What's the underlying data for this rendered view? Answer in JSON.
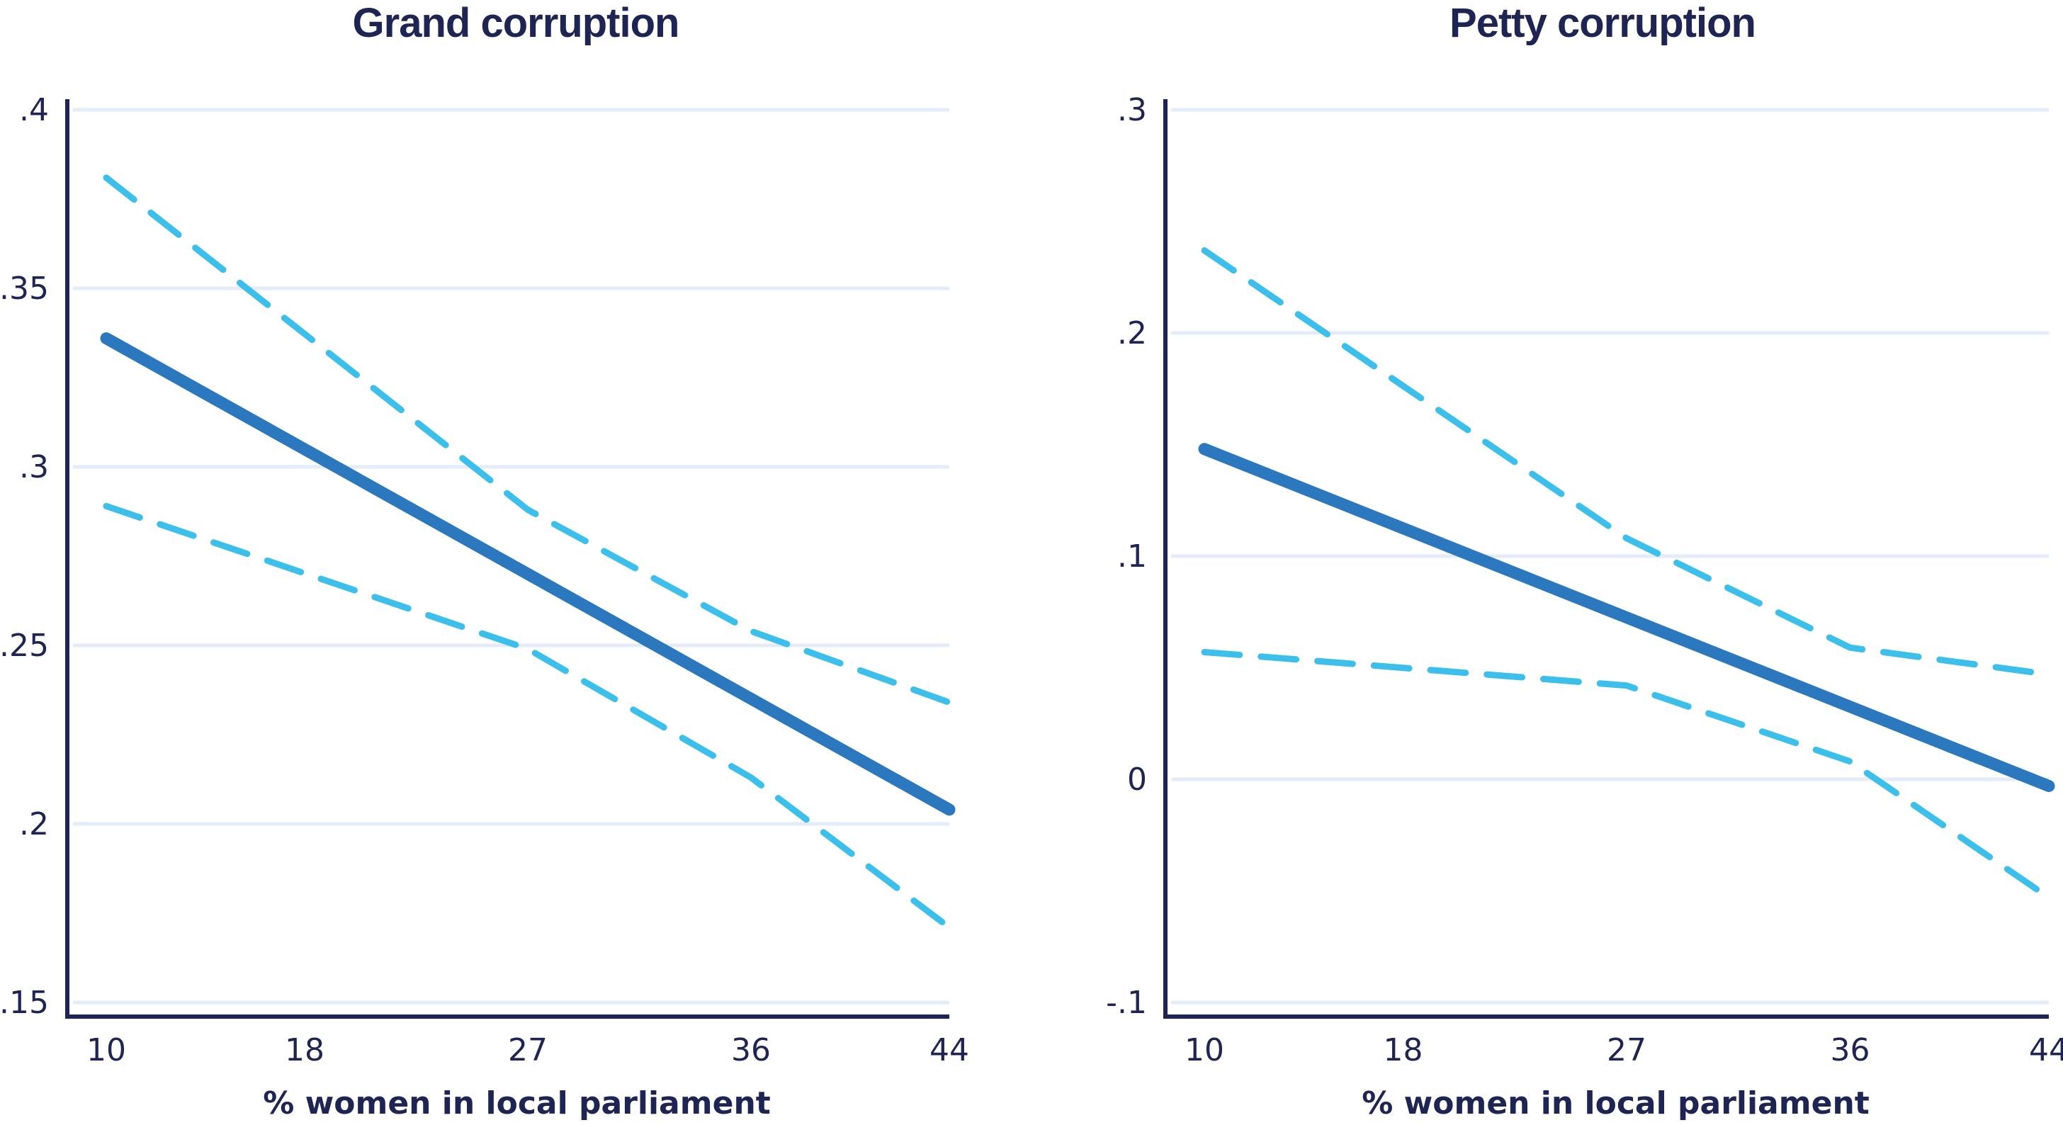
{
  "colors": {
    "title": "#1f2552",
    "axis": "#1f2552",
    "grid": "#e3ecf8",
    "estimate": "#2b78bf",
    "ci": "#3cbfea",
    "background": "#ffffff"
  },
  "chart_data": [
    {
      "type": "line",
      "title": "Grand corruption",
      "xlabel": "% women in local parliament",
      "ylabel": "",
      "x_ticks": [
        10,
        18,
        27,
        36,
        44
      ],
      "x_tick_labels": [
        "10",
        "18",
        "27",
        "36",
        "44"
      ],
      "xlim": [
        10,
        44
      ],
      "y_ticks": [
        0.15,
        0.2,
        0.25,
        0.3,
        0.35,
        0.4
      ],
      "y_tick_labels": [
        ".15",
        ".2",
        ".25",
        ".3",
        ".35",
        ".4"
      ],
      "ylim": [
        0.15,
        0.4
      ],
      "grid": true,
      "series": [
        {
          "name": "estimate",
          "style": "solid",
          "x": [
            10,
            44
          ],
          "values": [
            0.336,
            0.204
          ]
        },
        {
          "name": "upper ci",
          "style": "dashed",
          "x": [
            10,
            27,
            36,
            44
          ],
          "values": [
            0.381,
            0.288,
            0.254,
            0.234
          ]
        },
        {
          "name": "lower ci",
          "style": "dashed",
          "x": [
            10,
            27,
            36,
            44
          ],
          "values": [
            0.289,
            0.249,
            0.213,
            0.171
          ]
        }
      ]
    },
    {
      "type": "line",
      "title": "Petty corruption",
      "xlabel": "% women in local parliament",
      "ylabel": "",
      "x_ticks": [
        10,
        18,
        27,
        36,
        44
      ],
      "x_tick_labels": [
        "10",
        "18",
        "27",
        "36",
        "44"
      ],
      "xlim": [
        10,
        44
      ],
      "y_ticks": [
        -0.1,
        0,
        0.1,
        0.2,
        0.3
      ],
      "y_tick_labels": [
        "-.1",
        "0",
        ".1",
        ".2",
        ".3"
      ],
      "ylim": [
        -0.1,
        0.3
      ],
      "grid": true,
      "series": [
        {
          "name": "estimate",
          "style": "solid",
          "x": [
            10,
            44
          ],
          "values": [
            0.148,
            -0.003
          ]
        },
        {
          "name": "upper ci",
          "style": "dashed",
          "x": [
            10,
            27,
            36,
            44
          ],
          "values": [
            0.237,
            0.108,
            0.059,
            0.047
          ]
        },
        {
          "name": "lower ci",
          "style": "dashed",
          "x": [
            10,
            27,
            36,
            44
          ],
          "values": [
            0.057,
            0.042,
            0.008,
            -0.053
          ]
        }
      ]
    }
  ]
}
